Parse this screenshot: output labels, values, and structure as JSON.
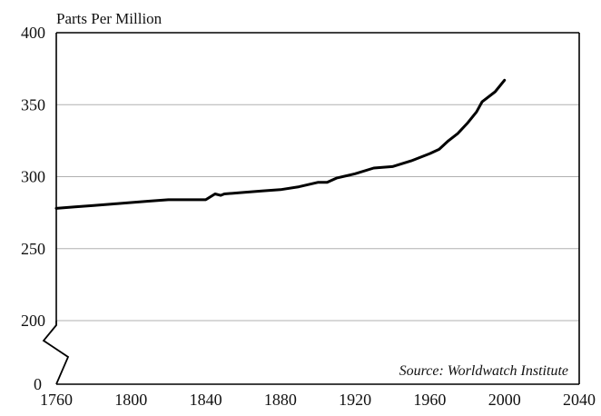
{
  "chart_data": {
    "type": "line",
    "title": "",
    "ylabel": "Parts Per Million",
    "xlabel": "",
    "source": "Source: Worldwatch Institute",
    "xlim": [
      1760,
      2040
    ],
    "ylim": [
      200,
      400
    ],
    "y_axis_break": true,
    "y_break_bottom_label": "0",
    "x_ticks": [
      1760,
      1800,
      1840,
      1880,
      1920,
      1960,
      2000,
      2040
    ],
    "y_ticks": [
      200,
      250,
      300,
      350,
      400
    ],
    "grid": "horizontal",
    "series": [
      {
        "x": [
          1760,
          1770,
          1780,
          1790,
          1800,
          1810,
          1820,
          1830,
          1840,
          1845,
          1848,
          1850,
          1860,
          1870,
          1880,
          1890,
          1900,
          1905,
          1910,
          1920,
          1930,
          1940,
          1950,
          1960,
          1965,
          1970,
          1975,
          1980,
          1985,
          1988,
          1990,
          1995,
          2000
        ],
        "y": [
          278,
          279,
          280,
          281,
          282,
          283,
          284,
          284,
          284,
          288,
          287,
          288,
          289,
          290,
          291,
          293,
          296,
          296,
          299,
          302,
          306,
          307,
          311,
          316,
          319,
          325,
          330,
          337,
          345,
          352,
          354,
          359,
          367
        ]
      }
    ],
    "colors": {
      "line": "#000000",
      "grid": "#b0b0b0",
      "frame": "#000000"
    }
  }
}
